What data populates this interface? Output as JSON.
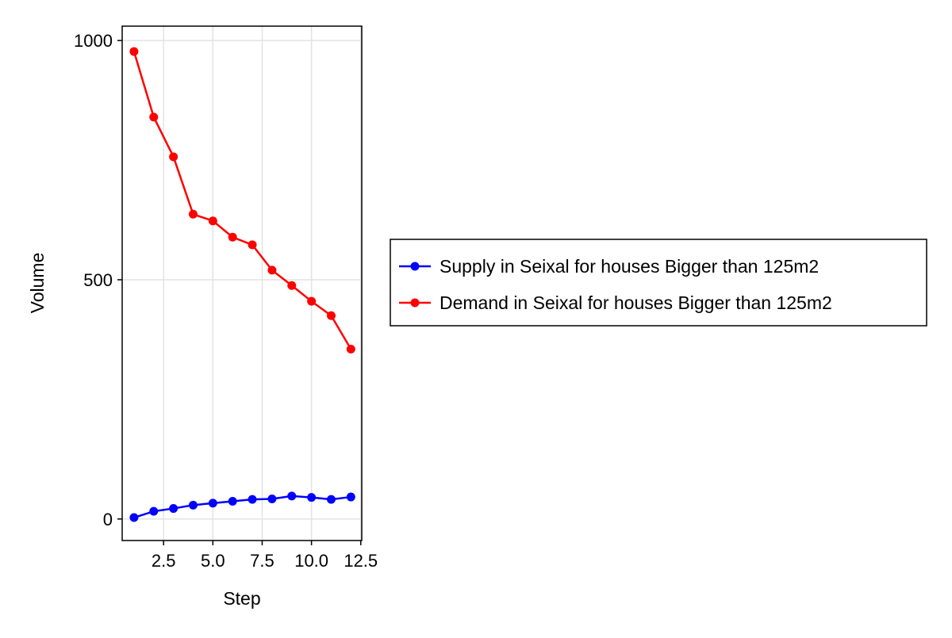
{
  "chart_data": {
    "type": "line",
    "title": "",
    "xlabel": "Step",
    "ylabel": "Volume",
    "xlim": [
      0.4,
      12.55
    ],
    "ylim": [
      -45,
      1030
    ],
    "xticks": [
      2.5,
      5.0,
      7.5,
      10.0,
      12.5
    ],
    "xtick_labels": [
      "2.5",
      "5.0",
      "7.5",
      "10.0",
      "12.5"
    ],
    "yticks": [
      0,
      500,
      1000
    ],
    "ytick_labels": [
      "0",
      "500",
      "1000"
    ],
    "grid": true,
    "legend_position": "right",
    "x": [
      1,
      2,
      3,
      4,
      5,
      6,
      7,
      8,
      9,
      10,
      11,
      12
    ],
    "series": [
      {
        "name": "Supply in Seixal for houses Bigger than 125m2",
        "color": "#0000ff",
        "values": [
          3,
          16,
          22,
          29,
          33,
          37,
          41,
          42,
          48,
          45,
          41,
          46
        ]
      },
      {
        "name": "Demand in Seixal for houses Bigger than 125m2",
        "color": "#ff0000",
        "values": [
          977,
          840,
          757,
          637,
          623,
          589,
          573,
          520,
          488,
          455,
          425,
          355
        ]
      }
    ]
  }
}
